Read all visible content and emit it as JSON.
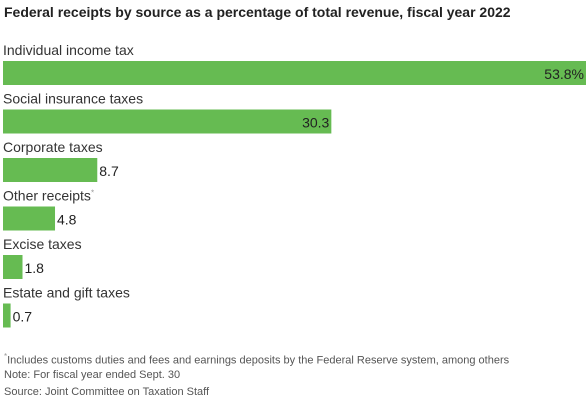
{
  "chart_data": {
    "type": "bar",
    "orientation": "horizontal",
    "title": "Federal receipts by source as a percentage of total revenue, fiscal year 2022",
    "categories": [
      "Individual income tax",
      "Social insurance taxes",
      "Corporate taxes",
      "Other receipts",
      "Excise taxes",
      "Estate and gift taxes"
    ],
    "category_marks": [
      "",
      "",
      "",
      "*",
      "",
      ""
    ],
    "values": [
      53.8,
      30.3,
      8.7,
      4.8,
      1.8,
      0.7
    ],
    "value_labels": [
      "53.8%",
      "30.3",
      "8.7",
      "4.8",
      "1.8",
      "0.7"
    ],
    "xlim": [
      0,
      53.8
    ],
    "grid": false,
    "legend": "none",
    "bar_color": "#66bb52",
    "label_color": "#222222"
  },
  "notes": {
    "footnote_mark": "*",
    "footnote": "Includes customs duties and fees and earnings deposits by the Federal Reserve system, among others",
    "note": "Note: For fiscal year ended Sept. 30",
    "source": "Source: Joint Committee on Taxation Staff"
  }
}
